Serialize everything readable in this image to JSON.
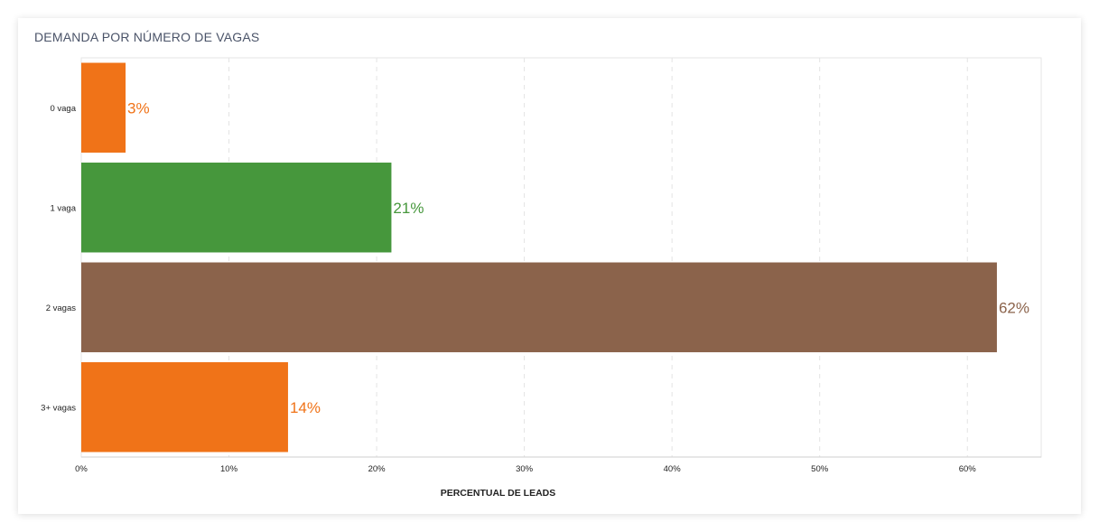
{
  "card": {
    "title": "DEMANDA POR NÚMERO DE VAGAS"
  },
  "chart_data": {
    "type": "bar",
    "orientation": "horizontal",
    "title": "DEMANDA POR NÚMERO DE VAGAS",
    "xlabel": "PERCENTUAL DE LEADS",
    "ylabel": "",
    "categories": [
      "0 vaga",
      "1 vaga",
      "2 vagas",
      "3+ vagas"
    ],
    "values": [
      3,
      21,
      62,
      14
    ],
    "value_labels": [
      "3%",
      "21%",
      "62%",
      "14%"
    ],
    "colors": [
      "#f07318",
      "#46973c",
      "#8b634b",
      "#f07318"
    ],
    "xlim": [
      0,
      65
    ],
    "xticks": [
      0,
      10,
      20,
      30,
      40,
      50,
      60
    ],
    "xtick_labels": [
      "0%",
      "10%",
      "20%",
      "30%",
      "40%",
      "50%",
      "60%"
    ],
    "grid": "vertical-dashed",
    "legend": "none"
  }
}
